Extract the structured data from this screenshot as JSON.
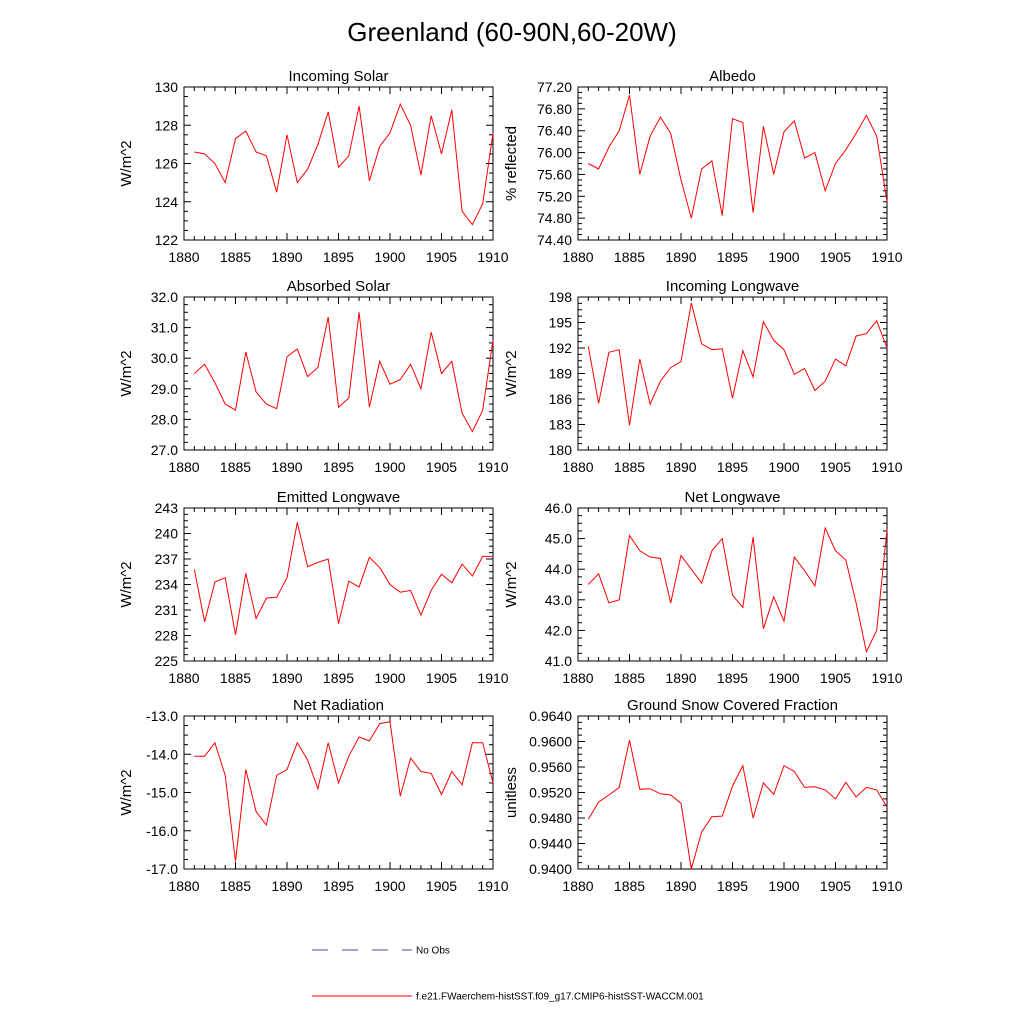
{
  "figure": {
    "title": "Greenland (60-90N,60-20W)",
    "legend": [
      {
        "label": "No Obs",
        "color": "#4a4aa8",
        "style": "dashed"
      },
      {
        "label": "f.e21.FWaerchem-histSST.f09_g17.CMIP6-histSST-WACCM.001",
        "color": "#ff0000",
        "style": "solid"
      }
    ]
  },
  "chart_data": [
    {
      "type": "line",
      "title": "Incoming Solar",
      "ylabel": "W/m^2",
      "xlim": [
        1880,
        1910
      ],
      "ylim": [
        122,
        130
      ],
      "x_ticks": [
        1880,
        1885,
        1890,
        1895,
        1900,
        1905,
        1910
      ],
      "y_ticks": [
        "122",
        "124",
        "126",
        "128",
        "130"
      ],
      "series": [
        {
          "color": "#ff0000",
          "x": [
            1881,
            1882,
            1883,
            1884,
            1885,
            1886,
            1887,
            1888,
            1889,
            1890,
            1891,
            1892,
            1893,
            1894,
            1895,
            1896,
            1897,
            1898,
            1899,
            1900,
            1901,
            1902,
            1903,
            1904,
            1905,
            1906,
            1907,
            1908,
            1909,
            1910
          ],
          "y": [
            126.6,
            126.5,
            126.0,
            125.0,
            127.3,
            127.7,
            126.6,
            126.4,
            124.5,
            127.5,
            125.0,
            125.7,
            127.0,
            128.7,
            125.8,
            126.4,
            129.0,
            125.1,
            126.9,
            127.6,
            129.1,
            128.0,
            125.4,
            128.5,
            126.5,
            128.8,
            123.5,
            122.8,
            123.9,
            127.6
          ]
        }
      ]
    },
    {
      "type": "line",
      "title": "Albedo",
      "ylabel": "% reflected",
      "xlim": [
        1880,
        1910
      ],
      "ylim": [
        74.4,
        77.2
      ],
      "x_ticks": [
        1880,
        1885,
        1890,
        1895,
        1900,
        1905,
        1910
      ],
      "y_ticks": [
        "74.40",
        "74.80",
        "75.20",
        "75.60",
        "76.00",
        "76.40",
        "76.80",
        "77.20"
      ],
      "series": [
        {
          "color": "#ff0000",
          "x": [
            1881,
            1882,
            1883,
            1884,
            1885,
            1886,
            1887,
            1888,
            1889,
            1890,
            1891,
            1892,
            1893,
            1894,
            1895,
            1896,
            1897,
            1898,
            1899,
            1900,
            1901,
            1902,
            1903,
            1904,
            1905,
            1906,
            1907,
            1908,
            1909,
            1910
          ],
          "y": [
            75.8,
            75.7,
            76.1,
            76.4,
            77.05,
            75.6,
            76.3,
            76.65,
            76.35,
            75.5,
            74.8,
            75.7,
            75.85,
            74.85,
            76.62,
            76.55,
            74.9,
            76.48,
            75.6,
            76.38,
            76.58,
            75.9,
            76.0,
            75.3,
            75.8,
            76.05,
            76.35,
            76.68,
            76.3,
            75.1
          ]
        }
      ]
    },
    {
      "type": "line",
      "title": "Absorbed Solar",
      "ylabel": "W/m^2",
      "xlim": [
        1880,
        1910
      ],
      "ylim": [
        27.0,
        32.0
      ],
      "x_ticks": [
        1880,
        1885,
        1890,
        1895,
        1900,
        1905,
        1910
      ],
      "y_ticks": [
        "27.0",
        "28.0",
        "29.0",
        "30.0",
        "31.0",
        "32.0"
      ],
      "series": [
        {
          "color": "#ff0000",
          "x": [
            1881,
            1882,
            1883,
            1884,
            1885,
            1886,
            1887,
            1888,
            1889,
            1890,
            1891,
            1892,
            1893,
            1894,
            1895,
            1896,
            1897,
            1898,
            1899,
            1900,
            1901,
            1902,
            1903,
            1904,
            1905,
            1906,
            1907,
            1908,
            1909,
            1910
          ],
          "y": [
            29.5,
            29.8,
            29.2,
            28.5,
            28.3,
            30.2,
            28.9,
            28.5,
            28.35,
            30.05,
            30.3,
            29.4,
            29.7,
            31.35,
            28.4,
            28.7,
            31.5,
            28.4,
            29.9,
            29.15,
            29.3,
            29.8,
            29.0,
            30.85,
            29.5,
            29.9,
            28.2,
            27.6,
            28.3,
            30.6
          ]
        }
      ]
    },
    {
      "type": "line",
      "title": "Incoming Longwave",
      "ylabel": "W/m^2",
      "xlim": [
        1880,
        1910
      ],
      "ylim": [
        180,
        198
      ],
      "x_ticks": [
        1880,
        1885,
        1890,
        1895,
        1900,
        1905,
        1910
      ],
      "y_ticks": [
        "180",
        "183",
        "186",
        "189",
        "192",
        "195",
        "198"
      ],
      "series": [
        {
          "color": "#ff0000",
          "x": [
            1881,
            1882,
            1883,
            1884,
            1885,
            1886,
            1887,
            1888,
            1889,
            1890,
            1891,
            1892,
            1893,
            1894,
            1895,
            1896,
            1897,
            1898,
            1899,
            1900,
            1901,
            1902,
            1903,
            1904,
            1905,
            1906,
            1907,
            1908,
            1909,
            1910
          ],
          "y": [
            192.2,
            185.5,
            191.5,
            191.8,
            182.9,
            190.7,
            185.4,
            188.1,
            189.7,
            190.4,
            197.3,
            192.5,
            191.8,
            191.9,
            186.1,
            191.7,
            188.6,
            195.1,
            192.9,
            191.8,
            188.9,
            189.6,
            187.0,
            188.1,
            190.7,
            189.9,
            193.4,
            193.7,
            195.2,
            192.0
          ]
        }
      ]
    },
    {
      "type": "line",
      "title": "Emitted Longwave",
      "ylabel": "W/m^2",
      "xlim": [
        1880,
        1910
      ],
      "ylim": [
        225,
        243
      ],
      "x_ticks": [
        1880,
        1885,
        1890,
        1895,
        1900,
        1905,
        1910
      ],
      "y_ticks": [
        "225",
        "228",
        "231",
        "234",
        "237",
        "240",
        "243"
      ],
      "series": [
        {
          "color": "#ff0000",
          "x": [
            1881,
            1882,
            1883,
            1884,
            1885,
            1886,
            1887,
            1888,
            1889,
            1890,
            1891,
            1892,
            1893,
            1894,
            1895,
            1896,
            1897,
            1898,
            1899,
            1900,
            1901,
            1902,
            1903,
            1904,
            1905,
            1906,
            1907,
            1908,
            1909,
            1910
          ],
          "y": [
            235.8,
            229.6,
            234.3,
            234.8,
            228.1,
            235.3,
            230.0,
            232.4,
            232.5,
            234.8,
            241.3,
            236.1,
            236.6,
            237.0,
            229.4,
            234.4,
            233.7,
            237.2,
            236.0,
            234.0,
            233.1,
            233.3,
            230.4,
            233.3,
            235.2,
            234.2,
            236.4,
            235.0,
            237.3,
            237.3
          ]
        }
      ]
    },
    {
      "type": "line",
      "title": "Net Longwave",
      "ylabel": "W/m^2",
      "xlim": [
        1880,
        1910
      ],
      "ylim": [
        41.0,
        46.0
      ],
      "x_ticks": [
        1880,
        1885,
        1890,
        1895,
        1900,
        1905,
        1910
      ],
      "y_ticks": [
        "41.0",
        "42.0",
        "43.0",
        "44.0",
        "45.0",
        "46.0"
      ],
      "series": [
        {
          "color": "#ff0000",
          "x": [
            1881,
            1882,
            1883,
            1884,
            1885,
            1886,
            1887,
            1888,
            1889,
            1890,
            1891,
            1892,
            1893,
            1894,
            1895,
            1896,
            1897,
            1898,
            1899,
            1900,
            1901,
            1902,
            1903,
            1904,
            1905,
            1906,
            1907,
            1908,
            1909,
            1910
          ],
          "y": [
            43.5,
            43.85,
            42.9,
            43.0,
            45.1,
            44.6,
            44.4,
            44.35,
            42.9,
            44.45,
            44.0,
            43.55,
            44.6,
            45.0,
            43.15,
            42.75,
            45.05,
            42.05,
            43.1,
            42.3,
            44.4,
            43.95,
            43.45,
            45.35,
            44.6,
            44.3,
            42.9,
            41.3,
            42.0,
            45.3
          ]
        }
      ]
    },
    {
      "type": "line",
      "title": "Net Radiation",
      "ylabel": "W/m^2",
      "xlim": [
        1880,
        1910
      ],
      "ylim": [
        -17.0,
        -13.0
      ],
      "x_ticks": [
        1880,
        1885,
        1890,
        1895,
        1900,
        1905,
        1910
      ],
      "y_ticks": [
        "-17.0",
        "-16.0",
        "-15.0",
        "-14.0",
        "-13.0"
      ],
      "series": [
        {
          "color": "#ff0000",
          "x": [
            1881,
            1882,
            1883,
            1884,
            1885,
            1886,
            1887,
            1888,
            1889,
            1890,
            1891,
            1892,
            1893,
            1894,
            1895,
            1896,
            1897,
            1898,
            1899,
            1900,
            1901,
            1902,
            1903,
            1904,
            1905,
            1906,
            1907,
            1908,
            1909,
            1910
          ],
          "y": [
            -14.05,
            -14.05,
            -13.7,
            -14.55,
            -16.8,
            -14.4,
            -15.5,
            -15.85,
            -14.55,
            -14.4,
            -13.7,
            -14.15,
            -14.9,
            -13.7,
            -14.75,
            -14.05,
            -13.55,
            -13.65,
            -13.2,
            -13.15,
            -15.1,
            -14.1,
            -14.45,
            -14.5,
            -15.05,
            -14.45,
            -14.8,
            -13.7,
            -13.7,
            -14.75
          ]
        }
      ]
    },
    {
      "type": "line",
      "title": "Ground Snow Covered Fraction",
      "ylabel": "unitless",
      "xlim": [
        1880,
        1910
      ],
      "ylim": [
        0.94,
        0.964
      ],
      "x_ticks": [
        1880,
        1885,
        1890,
        1895,
        1900,
        1905,
        1910
      ],
      "y_ticks": [
        "0.9400",
        "0.9440",
        "0.9480",
        "0.9520",
        "0.9560",
        "0.9600",
        "0.9640"
      ],
      "series": [
        {
          "color": "#ff0000",
          "x": [
            1881,
            1882,
            1883,
            1884,
            1885,
            1886,
            1887,
            1888,
            1889,
            1890,
            1891,
            1892,
            1893,
            1894,
            1895,
            1896,
            1897,
            1898,
            1899,
            1900,
            1901,
            1902,
            1903,
            1904,
            1905,
            1906,
            1907,
            1908,
            1909,
            1910
          ],
          "y": [
            0.9478,
            0.9505,
            0.9516,
            0.9528,
            0.9602,
            0.9525,
            0.9526,
            0.9518,
            0.9516,
            0.9503,
            0.94,
            0.9458,
            0.9482,
            0.9483,
            0.953,
            0.9562,
            0.948,
            0.9535,
            0.9517,
            0.9562,
            0.9553,
            0.9528,
            0.9529,
            0.9524,
            0.951,
            0.9536,
            0.9513,
            0.9528,
            0.9524,
            0.9497
          ]
        }
      ]
    }
  ]
}
